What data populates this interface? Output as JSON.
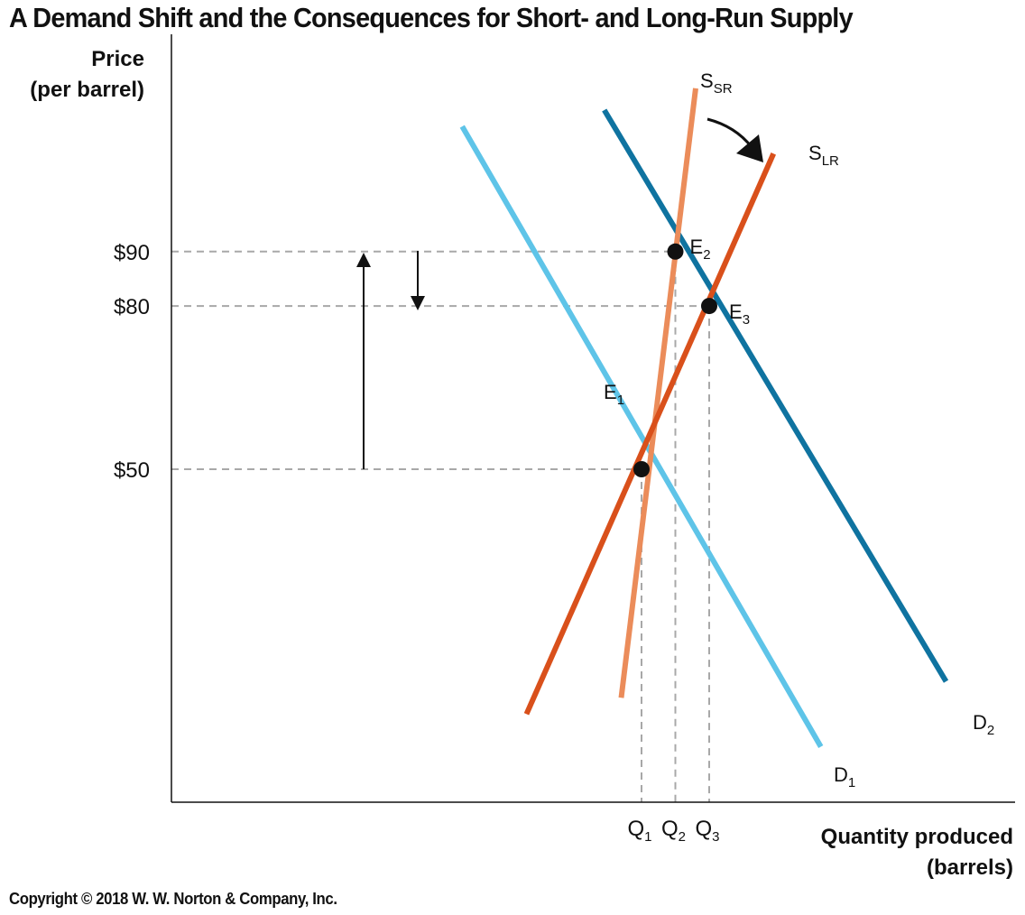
{
  "chart_data": {
    "type": "line",
    "title": "A Demand Shift and the Consequences for Short- and Long-Run Supply",
    "ylabel": [
      "Price",
      "(per barrel)"
    ],
    "xlabel": [
      "Quantity produced",
      "(barrels)"
    ],
    "yticks": [
      {
        "label": "$90",
        "value": 90
      },
      {
        "label": "$80",
        "value": 80
      },
      {
        "label": "$50",
        "value": 50
      }
    ],
    "xticks": [
      {
        "base": "Q",
        "sub": "1",
        "value": 1
      },
      {
        "base": "Q",
        "sub": "2",
        "value": 2
      },
      {
        "base": "Q",
        "sub": "3",
        "value": 3
      }
    ],
    "series": [
      {
        "key": "D1",
        "base": "D",
        "sub": "1",
        "color": "#5ec4e8",
        "points": [
          [
            -4.3,
            113
          ],
          [
            6.3,
            -1
          ]
        ]
      },
      {
        "key": "D2",
        "base": "D",
        "sub": "2",
        "color": "#0f73a0",
        "points": [
          [
            -0.1,
            116
          ],
          [
            10.0,
            11
          ]
        ]
      },
      {
        "key": "SSR",
        "base": "S",
        "sub": "SR",
        "color": "#eb8c5a",
        "points": [
          [
            0.4,
            8
          ],
          [
            2.6,
            120
          ]
        ]
      },
      {
        "key": "SLR",
        "base": "S",
        "sub": "LR",
        "color": "#d9501b",
        "points": [
          [
            -2.4,
            5
          ],
          [
            4.9,
            108
          ]
        ]
      }
    ],
    "equilibria": [
      {
        "base": "E",
        "sub": "1",
        "x": 1,
        "y": 50
      },
      {
        "base": "E",
        "sub": "2",
        "x": 2,
        "y": 90
      },
      {
        "base": "E",
        "sub": "3",
        "x": 3,
        "y": 80
      }
    ],
    "annotations": [
      "price rises from $50 to $90",
      "price falls from $90 to $80",
      "curved arrow from S_SR to S_LR"
    ]
  },
  "copyright": "Copyright © 2018 W. W. Norton & Company, Inc."
}
